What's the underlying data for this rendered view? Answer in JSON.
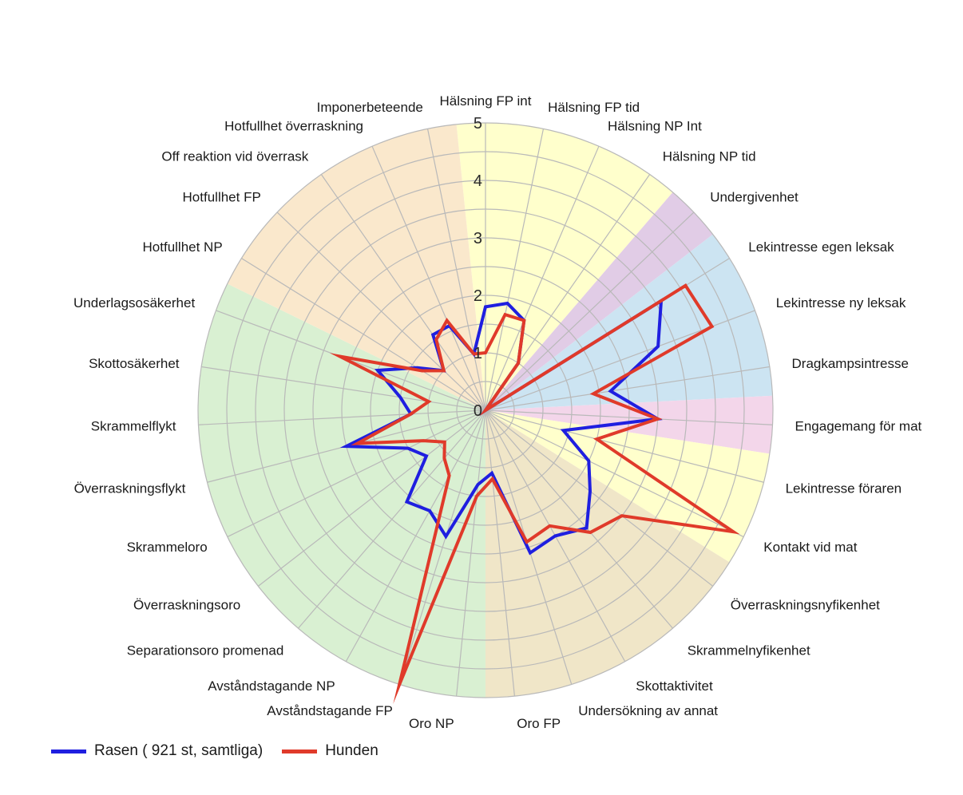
{
  "chart_data": {
    "type": "radar",
    "title": "",
    "rmax": 5,
    "ticks": [
      "0",
      "1",
      "2",
      "3",
      "4",
      "5"
    ],
    "grid": true,
    "legend_position": "bottom-left",
    "categories": [
      "Hälsning FP int",
      "Hälsning FP tid",
      "Hälsning NP Int",
      "Hälsning NP tid",
      "Undergivenhet",
      "Lekintresse egen leksak",
      "Lekintresse ny leksak",
      "Dragkampsintresse",
      "Engagemang för mat",
      "Lekintresse föraren",
      "Kontakt vid mat",
      "Överraskningsnyfikenhet",
      "Skrammelnyfikenhet",
      "Skottaktivitet",
      "Undersökning av annat",
      "Oro FP",
      "Oro NP",
      "Avståndstagande FP",
      "Avståndstagande NP",
      "Separationsoro promenad",
      "Överraskningsoro",
      "Skrammeloro",
      "Överraskningsflykt",
      "Skrammelflykt",
      "Skottosäkerhet",
      "Underlagsosäkerhet",
      "Hotfullhet NP",
      "Hotfullhet FP",
      "Off reaktion vid överrask",
      "Hotfullhet överraskning",
      "Imponerbeteende"
    ],
    "sectors": [
      {
        "from": 0,
        "to": 4,
        "color": "#ffffcc"
      },
      {
        "from": 4,
        "to": 5,
        "color": "#e1cce6"
      },
      {
        "from": 5,
        "to": 8,
        "color": "#cce4f2"
      },
      {
        "from": 8,
        "to": 9,
        "color": "#f3d6ea"
      },
      {
        "from": 9,
        "to": 11,
        "color": "#ffffcc"
      },
      {
        "from": 11,
        "to": 16,
        "color": "#f0e6c8"
      },
      {
        "from": 16,
        "to": 26,
        "color": "#d9f0d2"
      },
      {
        "from": 26,
        "to": 31,
        "color": "#fae8cc"
      }
    ],
    "series": [
      {
        "name": "Rasen ( 921 st, samtliga)",
        "color": "#1f1fe0",
        "values": [
          1.8,
          1.9,
          1.7,
          1.0,
          0.0,
          3.6,
          3.2,
          2.2,
          3.0,
          1.4,
          2.0,
          2.3,
          2.7,
          2.5,
          2.6,
          1.1,
          1.3,
          2.3,
          2.0,
          2.1,
          1.3,
          1.5,
          2.5,
          1.3,
          1.5,
          2.0,
          1.4,
          1.0,
          1.6,
          1.6,
          1.0
        ],
        "linewidth": 4
      },
      {
        "name": "Hunden",
        "color": "#e03a2a",
        "values": [
          1.0,
          1.7,
          1.7,
          1.0,
          0.0,
          4.1,
          4.2,
          1.9,
          3.0,
          2.0,
          4.8,
          3.0,
          2.8,
          2.3,
          2.4,
          1.2,
          1.5,
          5.0,
          1.3,
          1.1,
          0.9,
          1.2,
          2.3,
          1.3,
          1.0,
          2.7,
          1.3,
          1.0,
          1.5,
          1.7,
          1.0
        ],
        "linewidth": 4
      }
    ]
  }
}
